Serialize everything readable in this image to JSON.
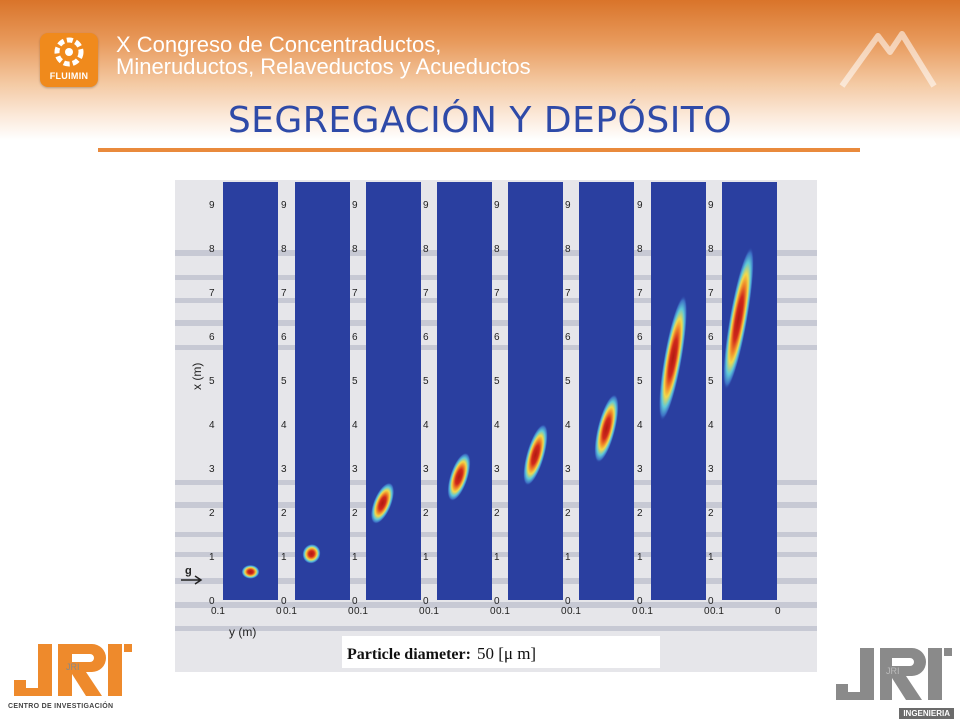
{
  "header": {
    "logo_text": "FLUIMIN",
    "congress_line1": "X Congreso de Concentraductos,",
    "congress_line2": "Mineruductos, Relaveductos y Acueductos"
  },
  "slide": {
    "title": "SEGREGACIÓN Y DEPÓSITO"
  },
  "figure": {
    "x_axis_label": "x (m)",
    "y_axis_label": "y (m)",
    "gravity_label": "g",
    "y_tick_left": "0.1",
    "y_tick_right": "0",
    "x_ticks": [
      "0",
      "1",
      "2",
      "3",
      "4",
      "5",
      "6",
      "7",
      "8",
      "9"
    ],
    "caption": "Particle diameter:",
    "caption_value": "50 [μ m]",
    "colors": {
      "panel": "#2a3fa0",
      "blob_outer": "#5fc9d8",
      "blob_mid": "#f2d94a",
      "blob_core": "#d0281c"
    },
    "panels": [
      {
        "center_x": 0.05,
        "center_y": 0.64,
        "length": 0.3,
        "angle": 90
      },
      {
        "center_x": 0.07,
        "center_y": 1.05,
        "length": 0.45,
        "angle": 70
      },
      {
        "center_x": 0.07,
        "center_y": 2.2,
        "length": 1.0,
        "angle": 68
      },
      {
        "center_x": 0.06,
        "center_y": 2.8,
        "length": 1.15,
        "angle": 72
      },
      {
        "center_x": 0.05,
        "center_y": 3.3,
        "length": 1.45,
        "angle": 74
      },
      {
        "center_x": 0.05,
        "center_y": 3.9,
        "length": 1.6,
        "angle": 76
      },
      {
        "center_x": 0.06,
        "center_y": 5.5,
        "length": 2.9,
        "angle": 80
      },
      {
        "center_x": 0.07,
        "center_y": 6.4,
        "length": 3.3,
        "angle": 80
      }
    ]
  },
  "footer": {
    "left_logo_text": "JRI",
    "left_logo_sub": "CENTRO DE INVESTIGACIÓN",
    "right_logo_text": "JRI",
    "right_logo_sub": "INGENIERIA"
  }
}
